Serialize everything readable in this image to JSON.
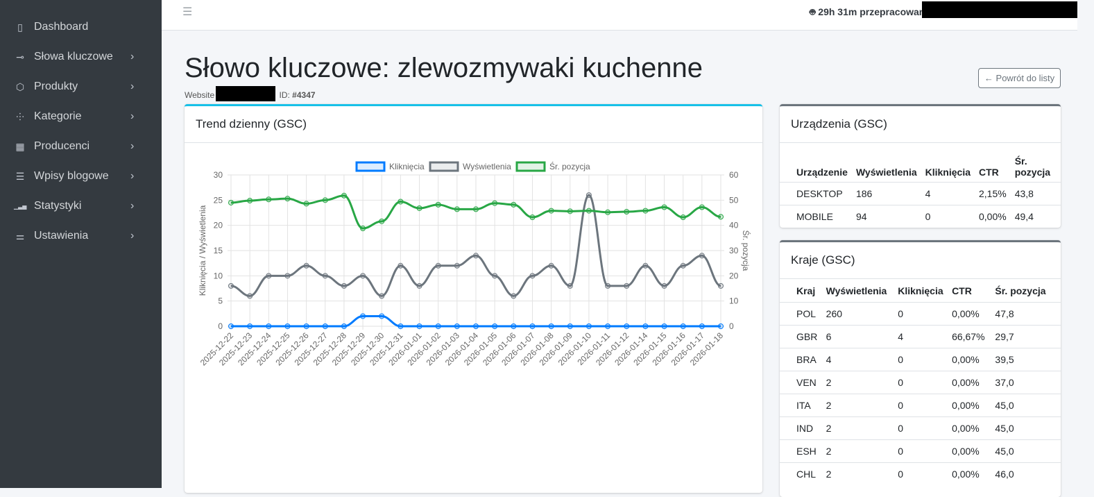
{
  "sidebar": {
    "items": [
      {
        "label": "Dashboard",
        "icon": "dashboard-icon",
        "chev": false
      },
      {
        "label": "Słowa kluczowe",
        "icon": "key-icon",
        "chev": true
      },
      {
        "label": "Produkty",
        "icon": "box-icon",
        "chev": true
      },
      {
        "label": "Kategorie",
        "icon": "sitemap-icon",
        "chev": true
      },
      {
        "label": "Producenci",
        "icon": "building-icon",
        "chev": true
      },
      {
        "label": "Wpisy blogowe",
        "icon": "journal-icon",
        "chev": true
      },
      {
        "label": "Statystyki",
        "icon": "bar-chart-icon",
        "chev": true
      },
      {
        "label": "Ustawienia",
        "icon": "sliders-icon",
        "chev": true
      }
    ]
  },
  "topbar": {
    "worked": "29h 31m przepracowane"
  },
  "page": {
    "title": "Słowo kluczowe: zlewozmywaki kuchenne",
    "website_label": "Website",
    "id_label": "ID:",
    "id_value": "#4347",
    "back": "← Powrót do listy"
  },
  "trend": {
    "title": "Trend dzienny (GSC)"
  },
  "chart_data": {
    "type": "line",
    "x": [
      "2025-12-22",
      "2025-12-23",
      "2025-12-24",
      "2025-12-25",
      "2025-12-26",
      "2025-12-27",
      "2025-12-28",
      "2025-12-29",
      "2025-12-30",
      "2025-12-31",
      "2026-01-01",
      "2026-01-02",
      "2026-01-03",
      "2026-01-04",
      "2026-01-05",
      "2026-01-06",
      "2026-01-07",
      "2026-01-08",
      "2026-01-09",
      "2026-01-10",
      "2026-01-11",
      "2026-01-12",
      "2026-01-14",
      "2026-01-15",
      "2026-01-16",
      "2026-01-17",
      "2026-01-18"
    ],
    "series": [
      {
        "name": "Kliknięcia",
        "axis": "left",
        "color": "#007bff",
        "values": [
          0,
          0,
          0,
          0,
          0,
          0,
          0,
          2,
          2,
          0,
          0,
          0,
          0,
          0,
          0,
          0,
          0,
          0,
          0,
          0,
          0,
          0,
          0,
          0,
          0,
          0,
          0
        ]
      },
      {
        "name": "Wyświetlenia",
        "axis": "left",
        "color": "#6c757d",
        "values": [
          8,
          6,
          10,
          10,
          12,
          10,
          8,
          10,
          6,
          12,
          8,
          12,
          12,
          14,
          10,
          6,
          10,
          12,
          8,
          26,
          8,
          8,
          12,
          8,
          12,
          14,
          8
        ]
      },
      {
        "name": "Śr. pozycja",
        "axis": "right",
        "color": "#28a745",
        "values": [
          49,
          49.8,
          50.3,
          50.6,
          48.6,
          50,
          51.8,
          38.8,
          41.6,
          49.4,
          46.8,
          48.2,
          46.4,
          46.4,
          48.8,
          48.2,
          43.2,
          45.8,
          45.6,
          45.8,
          45.2,
          45.4,
          45.8,
          47.2,
          43.2,
          47.2,
          43.4
        ]
      }
    ],
    "ylabel": "Kliknięcia / Wyświetlenia",
    "y2label": "Śr. pozycja",
    "ylim": [
      0,
      30
    ],
    "y2lim": [
      0,
      60
    ],
    "yticks": [
      "0",
      "5",
      "10",
      "15",
      "20",
      "25",
      "30"
    ],
    "y2ticks": [
      "0",
      "10",
      "20",
      "30",
      "40",
      "50",
      "60"
    ],
    "grid": true,
    "legend": "top"
  },
  "devices": {
    "title": "Urządzenia (GSC)",
    "headers": [
      "Urządzenie",
      "Wyświetlenia",
      "Kliknięcia",
      "CTR",
      "Śr. pozycja"
    ],
    "rows": [
      [
        "DESKTOP",
        "186",
        "4",
        "2,15%",
        "43,8"
      ],
      [
        "MOBILE",
        "94",
        "0",
        "0,00%",
        "49,4"
      ]
    ]
  },
  "countries": {
    "title": "Kraje (GSC)",
    "headers": [
      "Kraj",
      "Wyświetlenia",
      "Kliknięcia",
      "CTR",
      "Śr. pozycja"
    ],
    "rows": [
      [
        "POL",
        "260",
        "0",
        "0,00%",
        "47,8"
      ],
      [
        "GBR",
        "6",
        "4",
        "66,67%",
        "29,7"
      ],
      [
        "BRA",
        "4",
        "0",
        "0,00%",
        "39,5"
      ],
      [
        "VEN",
        "2",
        "0",
        "0,00%",
        "37,0"
      ],
      [
        "ITA",
        "2",
        "0",
        "0,00%",
        "45,0"
      ],
      [
        "IND",
        "2",
        "0",
        "0,00%",
        "45,0"
      ],
      [
        "ESH",
        "2",
        "0",
        "0,00%",
        "45,0"
      ],
      [
        "CHL",
        "2",
        "0",
        "0,00%",
        "46,0"
      ]
    ]
  }
}
